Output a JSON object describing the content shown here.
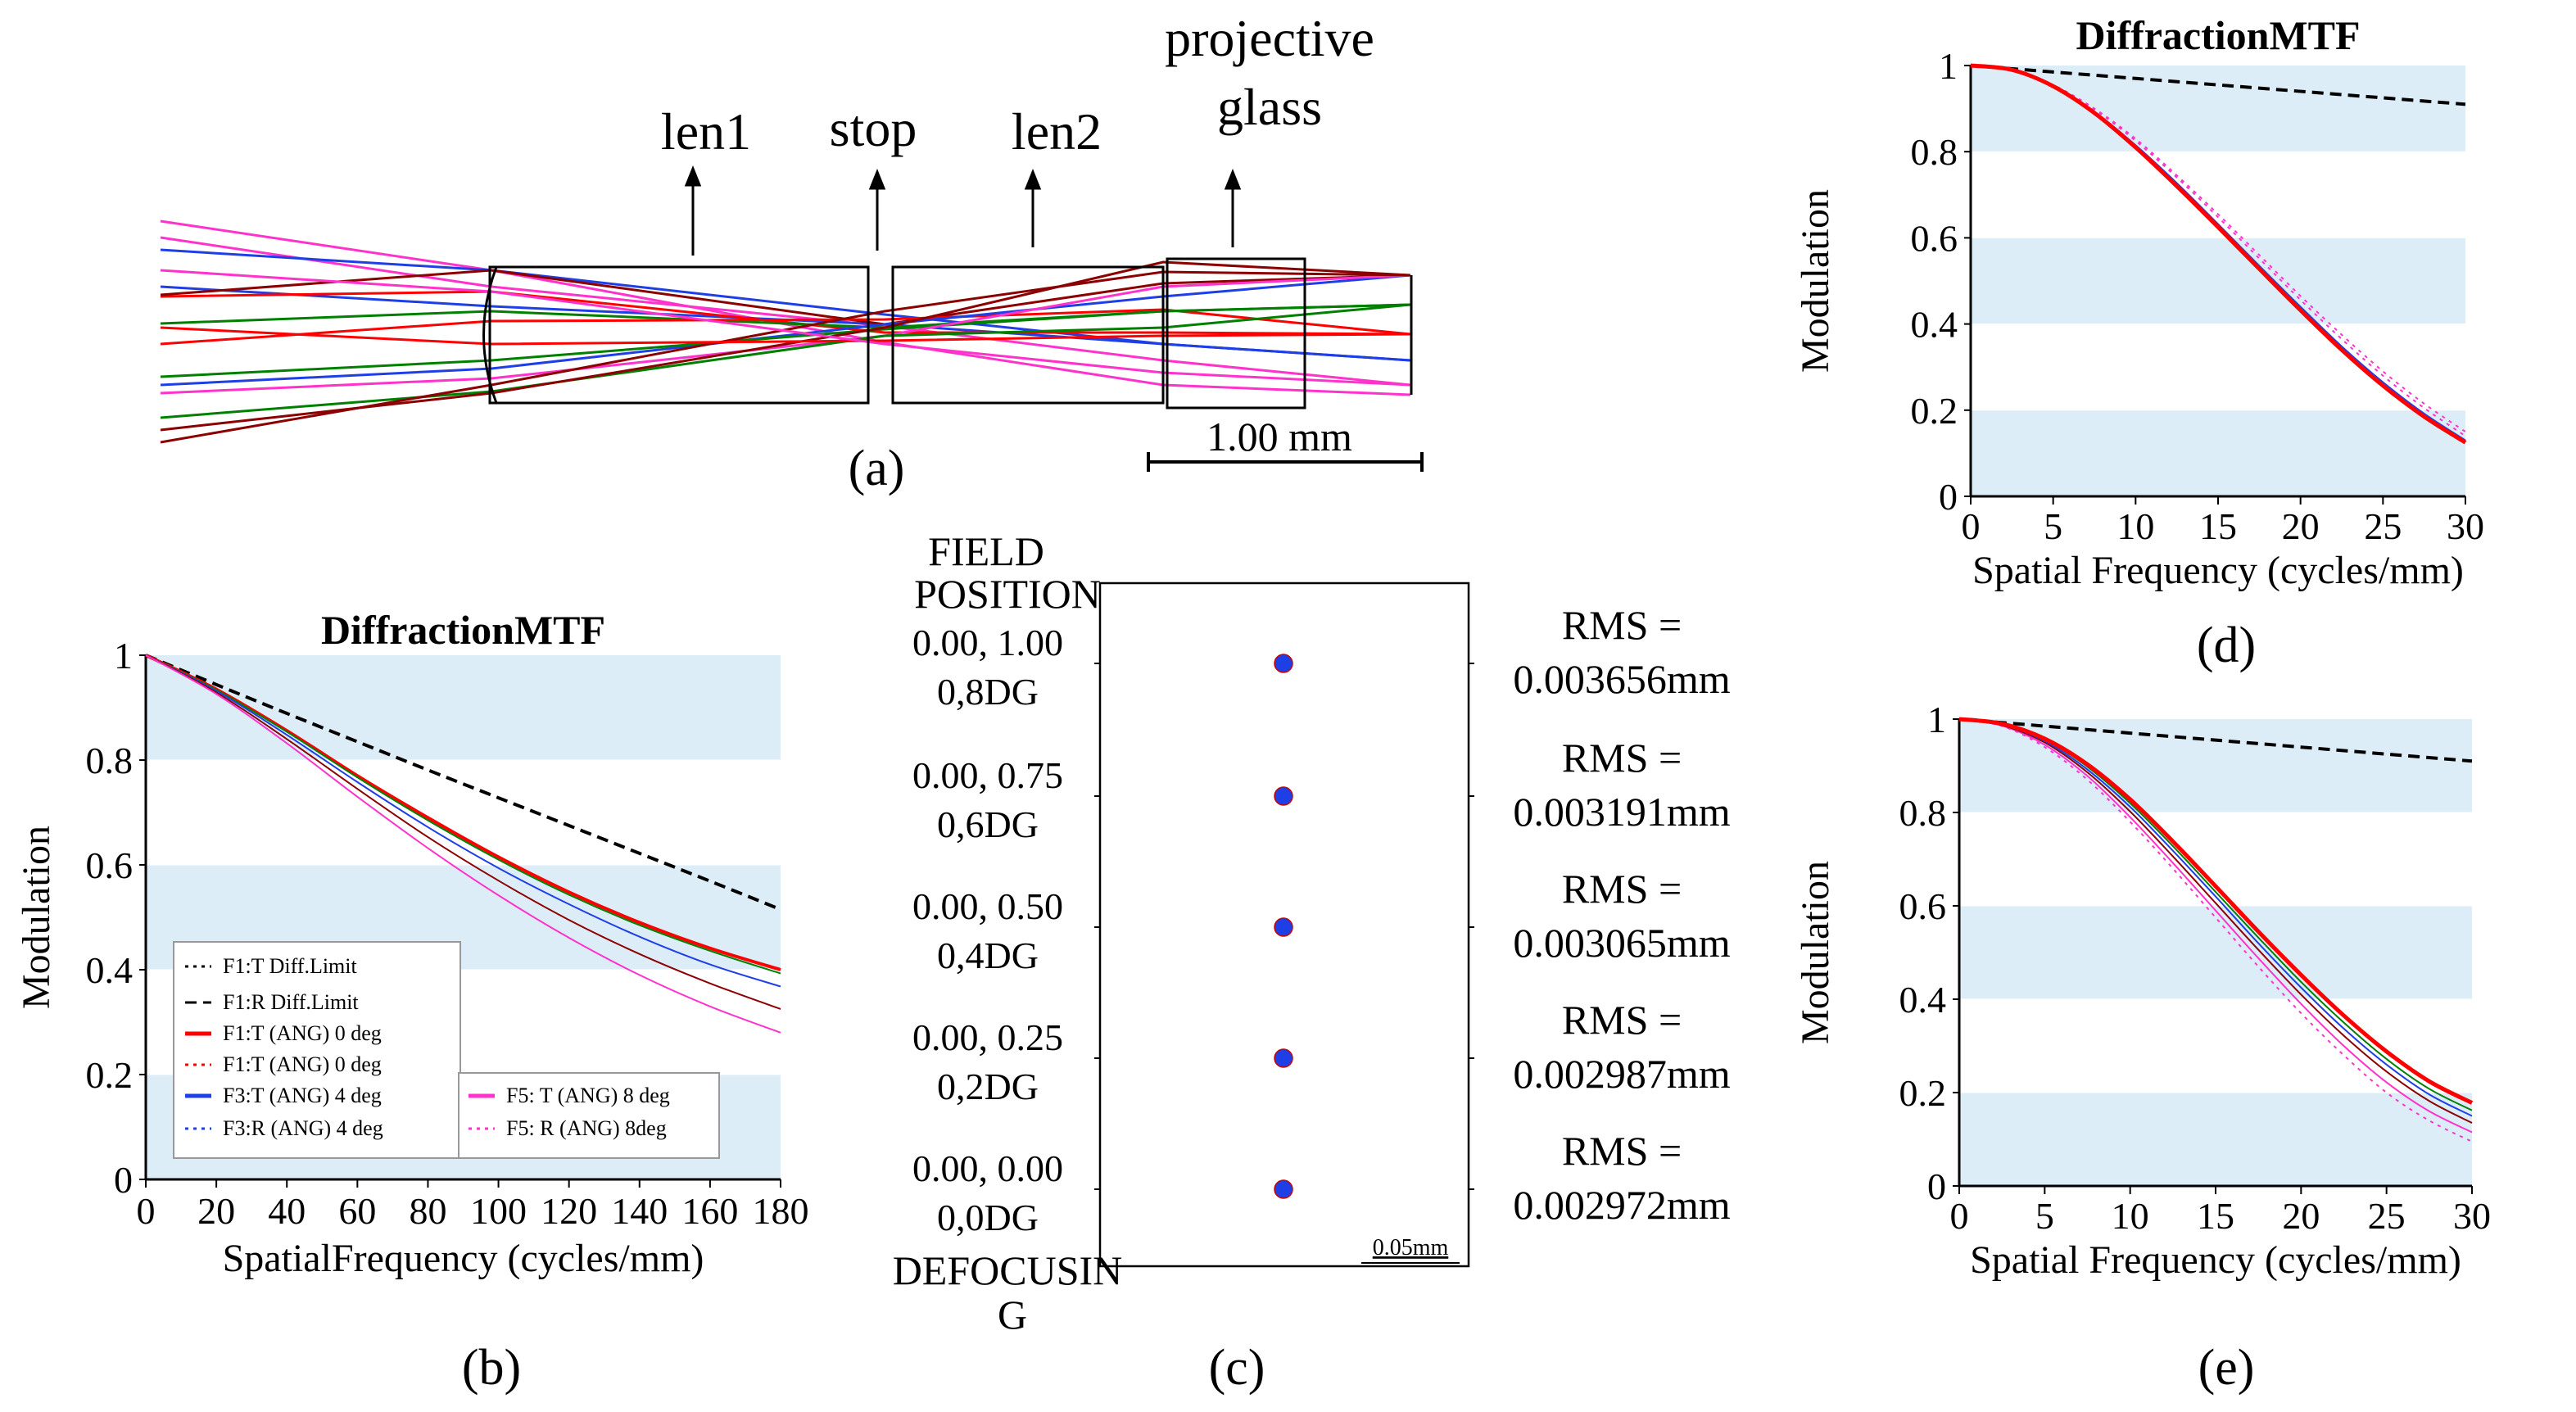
{
  "panel_a": {
    "caption": "(a)",
    "labels": {
      "len1": "len1",
      "stop": "stop",
      "len2": "len2",
      "projective_line1": "projective",
      "projective_line2": "glass"
    },
    "scale_bar": "1.00 mm"
  },
  "panel_c": {
    "caption": "(c)",
    "field_header_line1": "FIELD",
    "field_header_line2": "POSITION",
    "footer_line1": "DEFOCUSIN",
    "footer_line2": "G",
    "scale_label": "0.05mm",
    "spot_color": "#1f3fe6",
    "fields": [
      {
        "pos": "0.00, 1.00",
        "deg": "0,8DG",
        "rms_label": "RMS =",
        "rms_value": "0.003656mm"
      },
      {
        "pos": "0.00, 0.75",
        "deg": "0,6DG",
        "rms_label": "RMS =",
        "rms_value": "0.003191mm"
      },
      {
        "pos": "0.00, 0.50",
        "deg": "0,4DG",
        "rms_label": "RMS =",
        "rms_value": "0.003065mm"
      },
      {
        "pos": "0.00, 0.25",
        "deg": "0,2DG",
        "rms_label": "RMS =",
        "rms_value": "0.002987mm"
      },
      {
        "pos": "0.00, 0.00",
        "deg": "0,0DG",
        "rms_label": "RMS =",
        "rms_value": "0.002972mm"
      }
    ]
  },
  "chart_data": [
    {
      "id": "b",
      "type": "line",
      "caption": "(b)",
      "title": "DiffractionMTF",
      "xlabel": "SpatialFrequency (cycles/mm)",
      "ylabel": "Modulation",
      "xlim": [
        0,
        180
      ],
      "ylim": [
        0,
        1
      ],
      "xticks": [
        "0",
        "20",
        "40",
        "60",
        "80",
        "100",
        "120",
        "140",
        "160",
        "180"
      ],
      "yticks": [
        "0",
        "0.2",
        "0.4",
        "0.6",
        "0.8",
        "1"
      ],
      "band_color": "#dcedf8",
      "legend": [
        {
          "label": "F1:T Diff.Limit",
          "color": "#000000",
          "dash": "dot"
        },
        {
          "label": "F1:R Diff.Limit",
          "color": "#000000",
          "dash": "dash"
        },
        {
          "label": "F1:T (ANG) 0 deg",
          "color": "#ff0000",
          "dash": "solid"
        },
        {
          "label": "F1:T (ANG) 0 deg",
          "color": "#ff0000",
          "dash": "dot"
        },
        {
          "label": "F3:T (ANG) 4 deg",
          "color": "#1f3fe6",
          "dash": "solid"
        },
        {
          "label": "F3:R (ANG) 4 deg",
          "color": "#1f3fe6",
          "dash": "dot"
        },
        {
          "label": "F5:  T (ANG)  8 deg",
          "color": "#ff33cc",
          "dash": "solid"
        },
        {
          "label": "F5:  R (ANG)  8deg",
          "color": "#ff33cc",
          "dash": "dot"
        }
      ],
      "series": [
        {
          "name": "Diff.Limit",
          "color": "#000000",
          "dash": "dash",
          "width": 4,
          "x": [
            0,
            20,
            40,
            60,
            80,
            100,
            120,
            140,
            160,
            180
          ],
          "y": [
            1,
            0.944,
            0.889,
            0.835,
            0.781,
            0.728,
            0.675,
            0.622,
            0.569,
            0.515
          ]
        },
        {
          "name": "F1 0 deg",
          "color": "#ff0000",
          "dash": "solid",
          "width": 4,
          "x": [
            0,
            20,
            40,
            60,
            80,
            100,
            120,
            140,
            160,
            180
          ],
          "y": [
            1,
            0.935,
            0.856,
            0.77,
            0.69,
            0.615,
            0.548,
            0.49,
            0.441,
            0.4
          ]
        },
        {
          "name": "F2 2 deg",
          "color": "#008000",
          "dash": "solid",
          "width": 2,
          "x": [
            0,
            20,
            40,
            60,
            80,
            100,
            120,
            140,
            160,
            180
          ],
          "y": [
            1,
            0.934,
            0.854,
            0.767,
            0.685,
            0.61,
            0.543,
            0.485,
            0.436,
            0.393
          ]
        },
        {
          "name": "F3 4 deg",
          "color": "#1f3fe6",
          "dash": "solid",
          "width": 2,
          "x": [
            0,
            20,
            40,
            60,
            80,
            100,
            120,
            140,
            160,
            180
          ],
          "y": [
            1,
            0.932,
            0.848,
            0.758,
            0.672,
            0.594,
            0.525,
            0.463,
            0.41,
            0.368
          ]
        },
        {
          "name": "F4 6 deg",
          "color": "#8b0000",
          "dash": "solid",
          "width": 2,
          "x": [
            0,
            20,
            40,
            60,
            80,
            100,
            120,
            140,
            160,
            180
          ],
          "y": [
            1,
            0.929,
            0.84,
            0.745,
            0.653,
            0.57,
            0.495,
            0.43,
            0.374,
            0.325
          ]
        },
        {
          "name": "F5 8 deg",
          "color": "#ff33cc",
          "dash": "solid",
          "width": 2,
          "x": [
            0,
            20,
            40,
            60,
            80,
            100,
            120,
            140,
            160,
            180
          ],
          "y": [
            1,
            0.926,
            0.832,
            0.73,
            0.632,
            0.542,
            0.461,
            0.39,
            0.33,
            0.28
          ]
        }
      ]
    },
    {
      "id": "d",
      "type": "line",
      "caption": "(d)",
      "title": "DiffractionMTF",
      "xlabel": "Spatial Frequency (cycles/mm)",
      "ylabel": "Modulation",
      "xlim": [
        0,
        30
      ],
      "ylim": [
        0,
        1
      ],
      "xticks": [
        "0",
        "5",
        "10",
        "15",
        "20",
        "25",
        "30"
      ],
      "yticks": [
        "0",
        "0.2",
        "0.4",
        "0.6",
        "0.8",
        "1"
      ],
      "band_color": "#dcedf8",
      "series": [
        {
          "name": "Diff.Limit",
          "color": "#000000",
          "dash": "dash",
          "width": 4,
          "x": [
            0,
            5,
            10,
            15,
            20,
            25,
            30
          ],
          "y": [
            1,
            0.985,
            0.97,
            0.955,
            0.94,
            0.925,
            0.91
          ]
        },
        {
          "name": "8 deg R",
          "color": "#ff33cc",
          "dash": "dot",
          "width": 2,
          "x": [
            0,
            2.5,
            5,
            7.5,
            10,
            12.5,
            15,
            17.5,
            20,
            22.5,
            25,
            27.5,
            30
          ],
          "y": [
            1,
            0.99,
            0.955,
            0.9,
            0.83,
            0.745,
            0.655,
            0.56,
            0.465,
            0.375,
            0.29,
            0.215,
            0.15
          ]
        },
        {
          "name": "8 deg T",
          "color": "#ff33cc",
          "dash": "dot",
          "width": 2,
          "x": [
            0,
            2.5,
            5,
            7.5,
            10,
            12.5,
            15,
            17.5,
            20,
            22.5,
            25,
            27.5,
            30
          ],
          "y": [
            1,
            0.99,
            0.955,
            0.898,
            0.825,
            0.74,
            0.648,
            0.552,
            0.456,
            0.365,
            0.28,
            0.205,
            0.14
          ]
        },
        {
          "name": "4 deg",
          "color": "#1f3fe6",
          "dash": "solid",
          "width": 2,
          "x": [
            0,
            2.5,
            5,
            7.5,
            10,
            12.5,
            15,
            17.5,
            20,
            22.5,
            25,
            27.5,
            30
          ],
          "y": [
            1,
            0.99,
            0.953,
            0.893,
            0.815,
            0.727,
            0.632,
            0.535,
            0.44,
            0.348,
            0.265,
            0.192,
            0.13
          ]
        },
        {
          "name": "0 deg",
          "color": "#ff0000",
          "dash": "solid",
          "width": 5,
          "x": [
            0,
            2.5,
            5,
            7.5,
            10,
            12.5,
            15,
            17.5,
            20,
            22.5,
            25,
            27.5,
            30
          ],
          "y": [
            1,
            0.99,
            0.952,
            0.89,
            0.81,
            0.72,
            0.625,
            0.528,
            0.432,
            0.34,
            0.257,
            0.185,
            0.125
          ]
        }
      ]
    },
    {
      "id": "e",
      "type": "line",
      "caption": "(e)",
      "title": "",
      "xlabel": "Spatial Frequency (cycles/mm)",
      "ylabel": "Modulation",
      "xlim": [
        0,
        30
      ],
      "ylim": [
        0,
        1
      ],
      "xticks": [
        "0",
        "5",
        "10",
        "15",
        "20",
        "25",
        "30"
      ],
      "yticks": [
        "0",
        "0.2",
        "0.4",
        "0.6",
        "0.8",
        "1"
      ],
      "band_color": "#dcedf8",
      "series": [
        {
          "name": "Diff.Limit",
          "color": "#000000",
          "dash": "dash",
          "width": 4,
          "x": [
            0,
            5,
            10,
            15,
            20,
            25,
            30
          ],
          "y": [
            1,
            0.985,
            0.97,
            0.955,
            0.94,
            0.925,
            0.91
          ]
        },
        {
          "name": "8 deg R",
          "color": "#ff33cc",
          "dash": "dot",
          "width": 2,
          "x": [
            0,
            2.5,
            5,
            7.5,
            10,
            12.5,
            15,
            17.5,
            20,
            22.5,
            25,
            27.5,
            30
          ],
          "y": [
            1,
            0.985,
            0.94,
            0.87,
            0.78,
            0.68,
            0.575,
            0.47,
            0.37,
            0.28,
            0.2,
            0.14,
            0.095
          ]
        },
        {
          "name": "8 deg T",
          "color": "#ff33cc",
          "dash": "solid",
          "width": 2,
          "x": [
            0,
            2.5,
            5,
            7.5,
            10,
            12.5,
            15,
            17.5,
            20,
            22.5,
            25,
            27.5,
            30
          ],
          "y": [
            1,
            0.986,
            0.945,
            0.878,
            0.79,
            0.692,
            0.59,
            0.488,
            0.39,
            0.3,
            0.222,
            0.16,
            0.115
          ]
        },
        {
          "name": "6 deg",
          "color": "#8b0000",
          "dash": "solid",
          "width": 2,
          "x": [
            0,
            2.5,
            5,
            7.5,
            10,
            12.5,
            15,
            17.5,
            20,
            22.5,
            25,
            27.5,
            30
          ],
          "y": [
            1,
            0.987,
            0.95,
            0.886,
            0.802,
            0.706,
            0.606,
            0.506,
            0.41,
            0.322,
            0.245,
            0.182,
            0.135
          ]
        },
        {
          "name": "4 deg",
          "color": "#1f3fe6",
          "dash": "solid",
          "width": 2,
          "x": [
            0,
            2.5,
            5,
            7.5,
            10,
            12.5,
            15,
            17.5,
            20,
            22.5,
            25,
            27.5,
            30
          ],
          "y": [
            1,
            0.988,
            0.953,
            0.892,
            0.812,
            0.718,
            0.62,
            0.52,
            0.425,
            0.337,
            0.26,
            0.196,
            0.15
          ]
        },
        {
          "name": "2 deg",
          "color": "#008000",
          "dash": "solid",
          "width": 2,
          "x": [
            0,
            2.5,
            5,
            7.5,
            10,
            12.5,
            15,
            17.5,
            20,
            22.5,
            25,
            27.5,
            30
          ],
          "y": [
            1,
            0.989,
            0.956,
            0.898,
            0.82,
            0.728,
            0.63,
            0.532,
            0.437,
            0.35,
            0.272,
            0.208,
            0.162
          ]
        },
        {
          "name": "0 deg",
          "color": "#ff0000",
          "dash": "solid",
          "width": 5,
          "x": [
            0,
            2.5,
            5,
            7.5,
            10,
            12.5,
            15,
            17.5,
            20,
            22.5,
            25,
            27.5,
            30
          ],
          "y": [
            1,
            0.99,
            0.958,
            0.903,
            0.828,
            0.738,
            0.642,
            0.545,
            0.452,
            0.365,
            0.288,
            0.224,
            0.178
          ]
        }
      ]
    }
  ]
}
